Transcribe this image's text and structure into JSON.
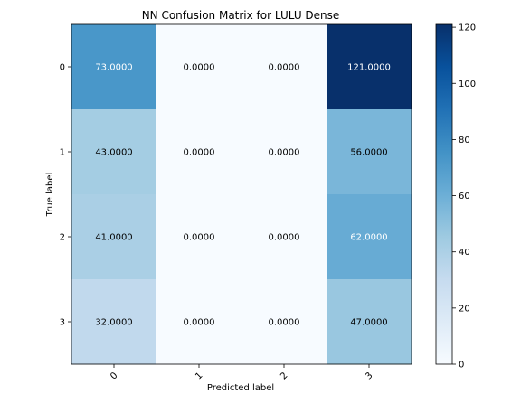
{
  "chart_data": {
    "type": "heatmap",
    "title": "NN Confusion Matrix for LULU Dense",
    "xlabel": "Predicted label",
    "ylabel": "True label",
    "x_tick_labels": [
      "0",
      "1",
      "2",
      "3"
    ],
    "y_tick_labels": [
      "0",
      "1",
      "2",
      "3"
    ],
    "matrix": [
      [
        73.0,
        0.0,
        0.0,
        121.0
      ],
      [
        43.0,
        0.0,
        0.0,
        56.0
      ],
      [
        41.0,
        0.0,
        0.0,
        62.0
      ],
      [
        32.0,
        0.0,
        0.0,
        47.0
      ]
    ],
    "cell_labels": [
      [
        "73.0000",
        "0.0000",
        "0.0000",
        "121.0000"
      ],
      [
        "43.0000",
        "0.0000",
        "0.0000",
        "56.0000"
      ],
      [
        "41.0000",
        "0.0000",
        "0.0000",
        "62.0000"
      ],
      [
        "32.0000",
        "0.0000",
        "0.0000",
        "47.0000"
      ]
    ],
    "colormap": "Blues",
    "colormap_stops": [
      "#f7fbff",
      "#deebf7",
      "#c6dbef",
      "#9ecae1",
      "#6baed6",
      "#4292c6",
      "#2171b5",
      "#08519c",
      "#08306b"
    ],
    "colorbar": {
      "range": [
        0,
        121
      ],
      "ticks": [
        0,
        20,
        40,
        60,
        80,
        100,
        120
      ],
      "tick_labels": [
        "0",
        "20",
        "40",
        "60",
        "80",
        "100",
        "120"
      ]
    },
    "text_threshold": 60.5,
    "text_color_light": "#ffffff",
    "text_color_dark": "#000000"
  }
}
